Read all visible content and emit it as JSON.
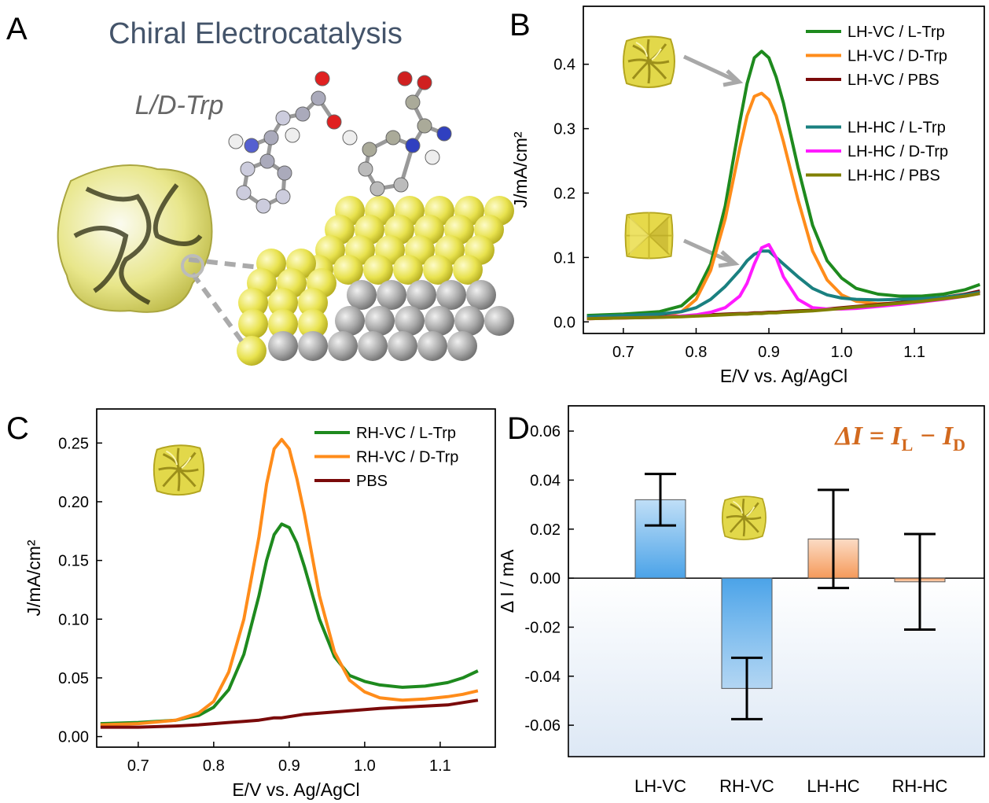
{
  "illustration": {
    "label": "A",
    "title": "Chiral Electrocatalysis",
    "annotation": "L/D-Trp"
  },
  "chart_data": [
    {
      "label": "B",
      "type": "line",
      "x": [
        0.65,
        0.7,
        0.75,
        0.78,
        0.8,
        0.82,
        0.84,
        0.86,
        0.87,
        0.88,
        0.89,
        0.9,
        0.91,
        0.92,
        0.94,
        0.96,
        0.98,
        1.0,
        1.02,
        1.05,
        1.08,
        1.11,
        1.14,
        1.17,
        1.19
      ],
      "xlim": [
        0.645,
        1.196
      ],
      "ylim": [
        -0.018,
        0.49
      ],
      "xticks": [
        0.7,
        0.8,
        0.9,
        {
          "value": 1,
          "label": "1.0"
        },
        1.1
      ],
      "yticks": [
        {
          "value": 0,
          "label": "0.0"
        },
        0.1,
        0.2,
        0.3,
        0.4
      ],
      "xlabel": "E/V vs. Ag/AgCl",
      "ylabel": "J/mA/cm²",
      "series": [
        {
          "name": "LH-VC / L-Trp",
          "color": "#1e8a1e",
          "values": [
            0.01,
            0.012,
            0.016,
            0.025,
            0.045,
            0.09,
            0.18,
            0.31,
            0.37,
            0.41,
            0.42,
            0.41,
            0.38,
            0.34,
            0.24,
            0.15,
            0.095,
            0.068,
            0.052,
            0.043,
            0.04,
            0.04,
            0.043,
            0.05,
            0.058
          ]
        },
        {
          "name": "LH-VC / D-Trp",
          "color": "#ff8c1a",
          "values": [
            0.005,
            0.006,
            0.008,
            0.016,
            0.035,
            0.08,
            0.16,
            0.27,
            0.32,
            0.35,
            0.355,
            0.345,
            0.32,
            0.28,
            0.19,
            0.11,
            0.065,
            0.042,
            0.032,
            0.028,
            0.029,
            0.032,
            0.036,
            0.042,
            0.048
          ]
        },
        {
          "name": "LH-VC / PBS",
          "color": "#7a0a0a",
          "values": [
            0.006,
            0.007,
            0.008,
            0.009,
            0.01,
            0.011,
            0.012,
            0.013,
            0.013,
            0.014,
            0.014,
            0.015,
            0.015,
            0.016,
            0.017,
            0.018,
            0.02,
            0.022,
            0.024,
            0.027,
            0.03,
            0.034,
            0.038,
            0.043,
            0.048
          ]
        },
        {
          "name": "LH-HC / L-Trp",
          "color": "#1a8080",
          "values": [
            0.008,
            0.01,
            0.012,
            0.016,
            0.022,
            0.035,
            0.055,
            0.08,
            0.095,
            0.105,
            0.11,
            0.11,
            0.1,
            0.09,
            0.07,
            0.052,
            0.042,
            0.037,
            0.035,
            0.034,
            0.035,
            0.036,
            0.038,
            0.042,
            0.046
          ]
        },
        {
          "name": "LH-HC / D-Trp",
          "color": "#ff1aff",
          "values": [
            0.005,
            0.006,
            0.007,
            0.009,
            0.011,
            0.015,
            0.022,
            0.04,
            0.06,
            0.09,
            0.115,
            0.12,
            0.1,
            0.07,
            0.035,
            0.022,
            0.02,
            0.02,
            0.021,
            0.024,
            0.027,
            0.031,
            0.035,
            0.04,
            0.044
          ]
        },
        {
          "name": "LH-HC / PBS",
          "color": "#808000",
          "values": [
            0.005,
            0.006,
            0.007,
            0.008,
            0.009,
            0.01,
            0.011,
            0.012,
            0.012,
            0.013,
            0.013,
            0.014,
            0.014,
            0.015,
            0.016,
            0.017,
            0.019,
            0.021,
            0.023,
            0.026,
            0.029,
            0.032,
            0.036,
            0.04,
            0.044
          ]
        }
      ]
    },
    {
      "label": "C",
      "type": "line",
      "x": [
        0.65,
        0.7,
        0.75,
        0.78,
        0.8,
        0.82,
        0.84,
        0.86,
        0.87,
        0.88,
        0.89,
        0.9,
        0.91,
        0.92,
        0.94,
        0.96,
        0.98,
        1.0,
        1.02,
        1.05,
        1.08,
        1.11,
        1.13,
        1.15
      ],
      "xlim": [
        0.645,
        1.173
      ],
      "ylim": [
        -0.009,
        0.279
      ],
      "xticks": [
        0.7,
        0.8,
        0.9,
        {
          "value": 1,
          "label": "1.0"
        },
        1.1
      ],
      "yticks": [
        {
          "value": 0,
          "label": "0.00"
        },
        0.05,
        {
          "value": 0.1,
          "label": "0.10"
        },
        0.15,
        {
          "value": 0.2,
          "label": "0.20"
        },
        0.25
      ],
      "xlabel": "E/V vs. Ag/AgCl",
      "ylabel": "J/mA/cm²",
      "series": [
        {
          "name": "RH-VC / L-Trp",
          "color": "#1e8a1e",
          "values": [
            0.011,
            0.012,
            0.014,
            0.018,
            0.025,
            0.04,
            0.07,
            0.12,
            0.15,
            0.172,
            0.181,
            0.178,
            0.165,
            0.145,
            0.1,
            0.068,
            0.052,
            0.047,
            0.044,
            0.042,
            0.043,
            0.046,
            0.05,
            0.056
          ]
        },
        {
          "name": "RH-VC / D-Trp",
          "color": "#ff8c1a",
          "values": [
            0.01,
            0.011,
            0.014,
            0.02,
            0.03,
            0.055,
            0.1,
            0.17,
            0.215,
            0.245,
            0.253,
            0.245,
            0.22,
            0.19,
            0.12,
            0.072,
            0.048,
            0.038,
            0.033,
            0.031,
            0.032,
            0.034,
            0.036,
            0.039
          ]
        },
        {
          "name": "PBS",
          "color": "#7a0a0a",
          "values": [
            0.008,
            0.008,
            0.009,
            0.01,
            0.011,
            0.012,
            0.013,
            0.014,
            0.015,
            0.016,
            0.016,
            0.017,
            0.018,
            0.019,
            0.02,
            0.021,
            0.022,
            0.023,
            0.024,
            0.025,
            0.026,
            0.027,
            0.029,
            0.031
          ]
        }
      ]
    },
    {
      "label": "D",
      "type": "bar",
      "categories": [
        "LH-VC",
        "RH-VC",
        "LH-HC",
        "RH-HC"
      ],
      "values": [
        0.032,
        -0.045,
        0.016,
        -0.0015
      ],
      "errors": [
        0.0105,
        0.0125,
        0.02,
        0.0195
      ],
      "colors": [
        "#4ba3e8",
        "#4ba3e8",
        "#f59a5a",
        "#f59a5a"
      ],
      "ylim": [
        -0.0728,
        0.0703
      ],
      "yticks": [
        -0.06,
        -0.04,
        -0.02,
        {
          "value": 0,
          "label": "0.00"
        },
        0.02,
        0.04,
        0.06
      ],
      "ylabel": "Δ I / mA",
      "annotation": [
        "ΔI = I",
        "L",
        " − I",
        "D"
      ]
    }
  ]
}
